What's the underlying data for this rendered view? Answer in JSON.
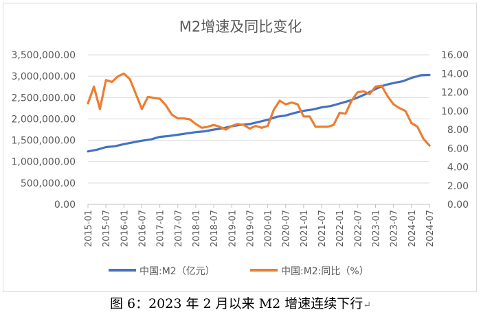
{
  "caption": "图 6：2023 年 2 月以来 M2 增速连续下行",
  "caption_return_mark": "↵",
  "chart_data": {
    "type": "line",
    "title": "M2增速及同比变化",
    "x_ticks": [
      "2015-01",
      "2015-07",
      "2016-01",
      "2016-07",
      "2017-01",
      "2017-07",
      "2018-01",
      "2018-07",
      "2019-01",
      "2019-07",
      "2020-01",
      "2020-07",
      "2021-01",
      "2021-07",
      "2022-01",
      "2022-07",
      "2023-01",
      "2023-07",
      "2024-01",
      "2024-07"
    ],
    "y_left": {
      "min": 0,
      "max": 3500000,
      "ticks": [
        "0.00",
        "500,000.00",
        "1,000,000.00",
        "1,500,000.00",
        "2,000,000.00",
        "2,500,000.00",
        "3,000,000.00",
        "3,500,000.00"
      ]
    },
    "y_right": {
      "min": 0,
      "max": 16,
      "ticks": [
        "0.00",
        "2.00",
        "4.00",
        "6.00",
        "8.00",
        "10.00",
        "12.00",
        "14.00",
        "16.00"
      ]
    },
    "grid": true,
    "legend_position": "bottom",
    "series": [
      {
        "name": "中国:M2（亿元）",
        "axis": "left",
        "color": "#4472c4",
        "x": [
          "2015-01",
          "2015-04",
          "2015-07",
          "2015-10",
          "2016-01",
          "2016-04",
          "2016-07",
          "2016-10",
          "2017-01",
          "2017-04",
          "2017-07",
          "2017-10",
          "2018-01",
          "2018-04",
          "2018-07",
          "2018-10",
          "2019-01",
          "2019-04",
          "2019-07",
          "2019-10",
          "2020-01",
          "2020-04",
          "2020-07",
          "2020-10",
          "2021-01",
          "2021-04",
          "2021-07",
          "2021-10",
          "2022-01",
          "2022-04",
          "2022-07",
          "2022-10",
          "2023-01",
          "2023-04",
          "2023-07",
          "2023-10",
          "2024-01",
          "2024-04",
          "2024-07"
        ],
        "values": [
          1240000,
          1280000,
          1340000,
          1360000,
          1410000,
          1450000,
          1490000,
          1520000,
          1580000,
          1600000,
          1630000,
          1660000,
          1690000,
          1710000,
          1750000,
          1780000,
          1830000,
          1860000,
          1880000,
          1930000,
          1980000,
          2050000,
          2080000,
          2140000,
          2190000,
          2220000,
          2270000,
          2300000,
          2360000,
          2420000,
          2500000,
          2590000,
          2700000,
          2790000,
          2840000,
          2880000,
          2960000,
          3020000,
          3030000
        ]
      },
      {
        "name": "中国:M2:同比（%）",
        "axis": "right",
        "color": "#ed7d31",
        "x": [
          "2015-01",
          "2015-03",
          "2015-05",
          "2015-07",
          "2015-09",
          "2015-11",
          "2016-01",
          "2016-03",
          "2016-05",
          "2016-07",
          "2016-09",
          "2016-11",
          "2017-01",
          "2017-03",
          "2017-05",
          "2017-07",
          "2017-09",
          "2017-11",
          "2018-01",
          "2018-03",
          "2018-05",
          "2018-07",
          "2018-09",
          "2018-11",
          "2019-01",
          "2019-03",
          "2019-05",
          "2019-07",
          "2019-09",
          "2019-11",
          "2020-01",
          "2020-03",
          "2020-05",
          "2020-07",
          "2020-09",
          "2020-11",
          "2021-01",
          "2021-03",
          "2021-05",
          "2021-07",
          "2021-09",
          "2021-11",
          "2022-01",
          "2022-03",
          "2022-05",
          "2022-07",
          "2022-09",
          "2022-11",
          "2023-01",
          "2023-03",
          "2023-05",
          "2023-07",
          "2023-09",
          "2023-11",
          "2024-01",
          "2024-03",
          "2024-05",
          "2024-07"
        ],
        "values": [
          10.8,
          12.6,
          10.2,
          13.3,
          13.1,
          13.7,
          14.0,
          13.4,
          11.8,
          10.2,
          11.5,
          11.4,
          11.3,
          10.6,
          9.6,
          9.2,
          9.2,
          9.1,
          8.6,
          8.2,
          8.3,
          8.5,
          8.3,
          8.0,
          8.4,
          8.6,
          8.5,
          8.1,
          8.4,
          8.2,
          8.4,
          10.1,
          11.1,
          10.7,
          10.9,
          10.7,
          9.4,
          9.4,
          8.3,
          8.3,
          8.3,
          8.5,
          9.8,
          9.7,
          11.1,
          12.0,
          12.1,
          11.8,
          12.6,
          12.7,
          11.6,
          10.7,
          10.3,
          10.0,
          8.7,
          8.3,
          7.0,
          6.3
        ]
      }
    ]
  }
}
